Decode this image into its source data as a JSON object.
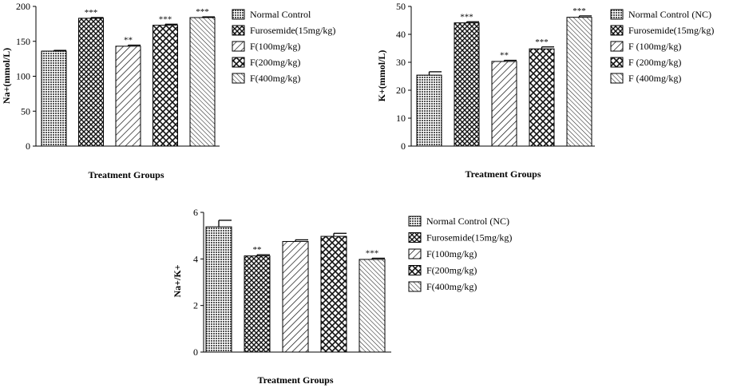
{
  "chart_data": [
    {
      "type": "bar",
      "title": "",
      "xlabel": "Treatment Groups",
      "ylabel": "Na+(mmol/L)",
      "ylim": [
        0,
        200
      ],
      "yticks": [
        0,
        50,
        100,
        150,
        200
      ],
      "categories": [
        "Normal Control",
        "Furosemide(15mg/kg)",
        "F(100mg/kg)",
        "F(200mg/kg)",
        "F(400mg/kg)"
      ],
      "legend": [
        "Normal Control",
        "Furosemide(15mg/kg)",
        "F(100mg/kg)",
        "F(200mg/kg)",
        "F(400mg/kg)"
      ],
      "values": [
        136,
        183,
        143,
        173,
        184
      ],
      "errors": [
        1,
        1,
        1.5,
        1.5,
        1
      ],
      "significance": [
        "",
        "***",
        "**",
        "***",
        "***"
      ],
      "legend_position": "right"
    },
    {
      "type": "bar",
      "title": "",
      "xlabel": "Treatment Groups",
      "ylabel": "K+(mmol/L)",
      "ylim": [
        0,
        50
      ],
      "yticks": [
        0,
        10,
        20,
        30,
        40,
        50
      ],
      "categories": [
        "Normal Control (NC)",
        "Furosemide(15mg/kg)",
        "F (100mg/kg)",
        "F (200mg/kg)",
        "F (400mg/kg)"
      ],
      "legend": [
        "Normal Control (NC)",
        "Furosemide(15mg/kg)",
        "F (100mg/kg)",
        "F (200mg/kg)",
        "F (400mg/kg)"
      ],
      "values": [
        25.4,
        44.1,
        30.3,
        34.8,
        46.1
      ],
      "errors": [
        1.2,
        0.4,
        0.4,
        0.7,
        0.5
      ],
      "significance": [
        "",
        "***",
        "**",
        "***",
        "***"
      ],
      "legend_position": "right"
    },
    {
      "type": "bar",
      "title": "",
      "xlabel": "Treatment Groups",
      "ylabel": "Na+/K+",
      "ylim": [
        0,
        6
      ],
      "yticks": [
        0,
        2,
        4,
        6
      ],
      "categories": [
        "Normal Control (NC)",
        "Furosemide(15mg/kg)",
        "F(100mg/kg)",
        "F(200mg/kg)",
        "F(400mg/kg)"
      ],
      "legend": [
        "Normal Control (NC)",
        "Furosemide(15mg/kg)",
        "F(100mg/kg)",
        "F(200mg/kg)",
        "F(400mg/kg)"
      ],
      "values": [
        5.38,
        4.13,
        4.75,
        4.97,
        3.98
      ],
      "errors": [
        0.28,
        0.05,
        0.07,
        0.13,
        0.05
      ],
      "significance": [
        "",
        "**",
        "",
        "",
        "***"
      ],
      "legend_position": "right"
    }
  ]
}
